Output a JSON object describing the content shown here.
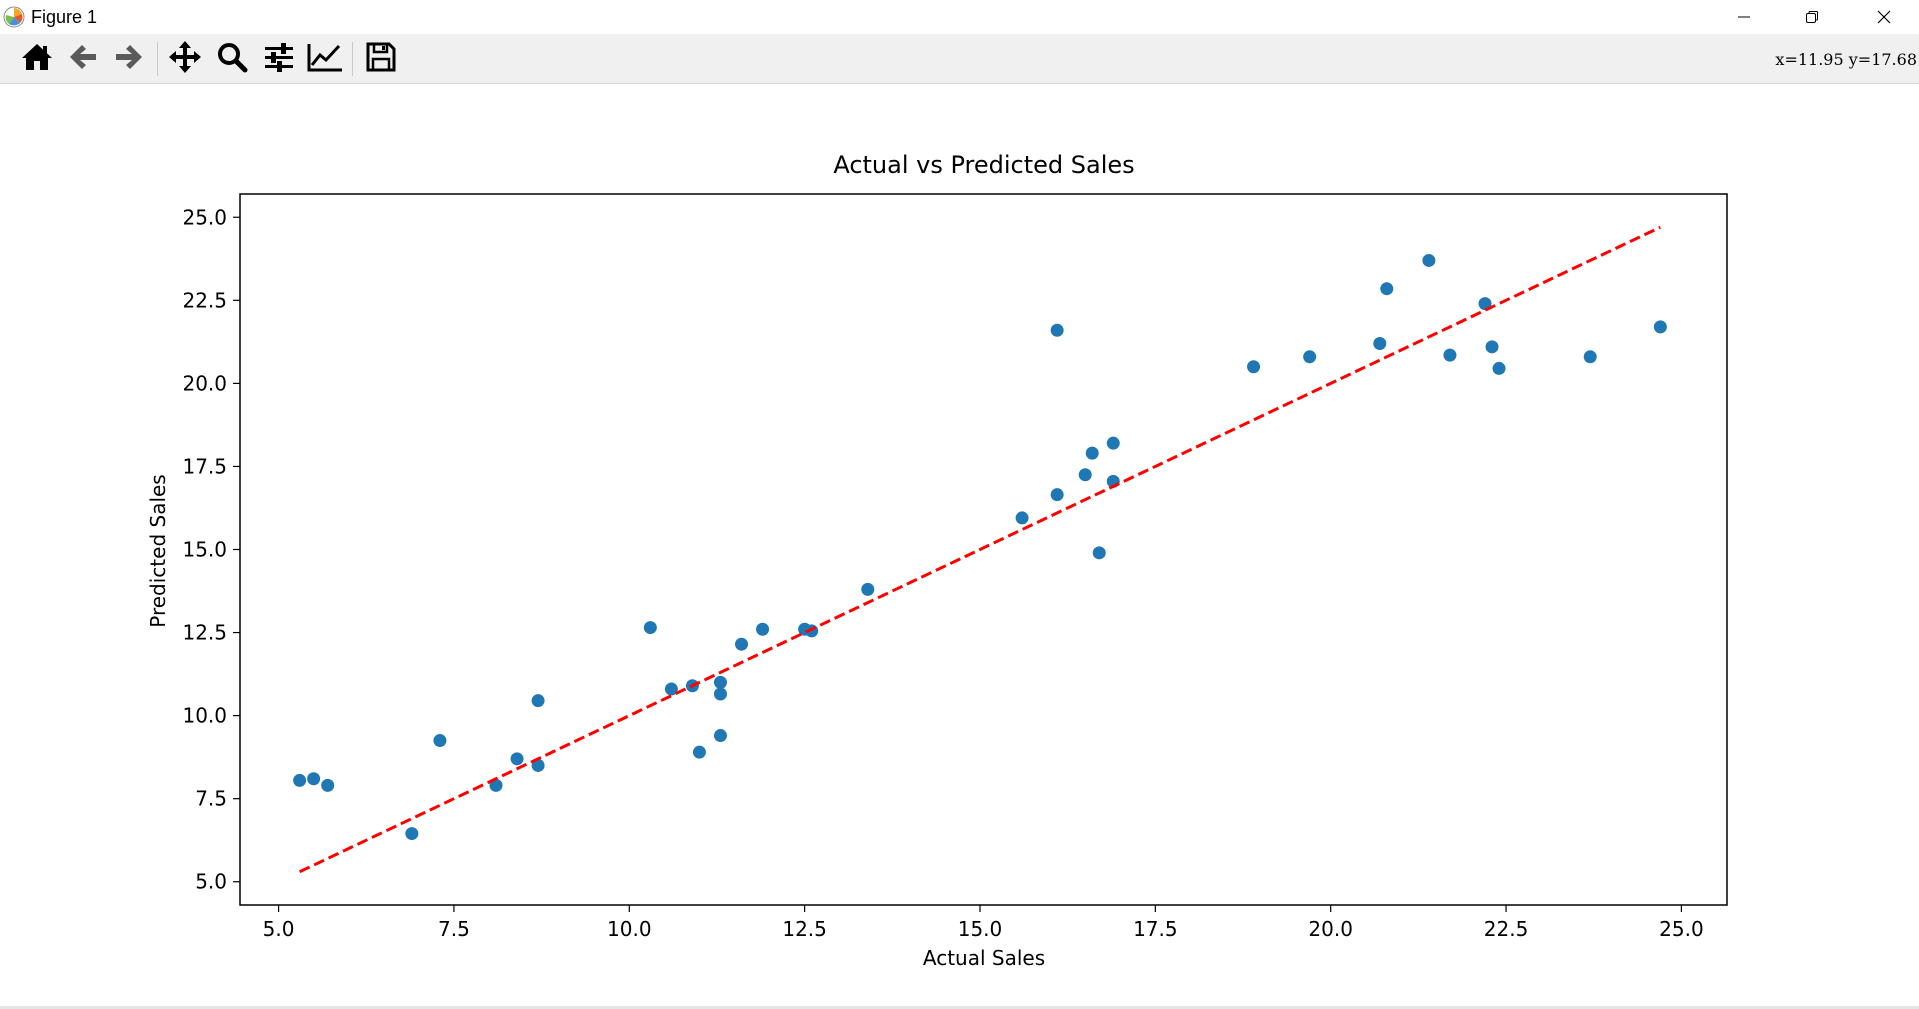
{
  "window": {
    "title": "Figure 1",
    "controls": [
      "minimize",
      "restore",
      "close"
    ]
  },
  "toolbar": {
    "buttons": [
      {
        "name": "home",
        "icon": "home-icon"
      },
      {
        "name": "back",
        "icon": "arrow-left-icon"
      },
      {
        "name": "forward",
        "icon": "arrow-right-icon"
      },
      {
        "name": "pan",
        "icon": "move-icon"
      },
      {
        "name": "zoom",
        "icon": "magnifier-icon"
      },
      {
        "name": "configure-subplots",
        "icon": "sliders-icon"
      },
      {
        "name": "edit-axes",
        "icon": "line-chart-icon"
      },
      {
        "name": "save",
        "icon": "floppy-disk-icon"
      }
    ],
    "coords": "x=11.95 y=17.68"
  },
  "colors": {
    "points": "#1f77b4",
    "fit_line": "#ff0000",
    "axes": "#000000"
  },
  "chart_data": {
    "type": "scatter",
    "title": "Actual vs Predicted Sales",
    "xlabel": "Actual Sales",
    "ylabel": "Predicted Sales",
    "xlim": [
      4.45,
      25.65
    ],
    "ylim": [
      4.3,
      25.7
    ],
    "xticks": [
      5.0,
      7.5,
      10.0,
      12.5,
      15.0,
      17.5,
      20.0,
      22.5,
      25.0
    ],
    "xtick_labels": [
      "5.0",
      "7.5",
      "10.0",
      "12.5",
      "15.0",
      "17.5",
      "20.0",
      "22.5",
      "25.0"
    ],
    "yticks": [
      5.0,
      7.5,
      10.0,
      12.5,
      15.0,
      17.5,
      20.0,
      22.5,
      25.0
    ],
    "ytick_labels": [
      "5.0",
      "7.5",
      "10.0",
      "12.5",
      "15.0",
      "17.5",
      "20.0",
      "22.5",
      "25.0"
    ],
    "grid": false,
    "series": [
      {
        "kind": "points",
        "x": [
          5.3,
          5.5,
          5.7,
          6.9,
          7.3,
          8.1,
          8.4,
          8.7,
          8.7,
          10.3,
          10.6,
          10.9,
          11.0,
          11.3,
          11.3,
          11.3,
          11.6,
          11.9,
          12.5,
          12.6,
          13.4,
          15.6,
          16.1,
          16.1,
          16.5,
          16.6,
          16.7,
          16.9,
          16.9,
          18.9,
          19.7,
          20.7,
          20.8,
          21.4,
          21.7,
          22.2,
          22.3,
          22.4,
          23.7,
          24.7
        ],
        "y": [
          8.05,
          8.1,
          7.9,
          6.45,
          9.25,
          7.9,
          8.7,
          8.5,
          10.45,
          12.65,
          10.8,
          10.9,
          8.9,
          11.0,
          10.65,
          9.4,
          12.15,
          12.6,
          12.6,
          12.55,
          13.8,
          15.95,
          16.65,
          21.6,
          17.25,
          17.9,
          14.9,
          17.05,
          18.2,
          20.5,
          20.8,
          21.2,
          22.85,
          23.7,
          20.85,
          22.4,
          21.1,
          20.45,
          20.8,
          21.7
        ]
      },
      {
        "kind": "dashed-line",
        "x": [
          5.3,
          24.7
        ],
        "y": [
          5.3,
          24.7
        ]
      }
    ]
  }
}
